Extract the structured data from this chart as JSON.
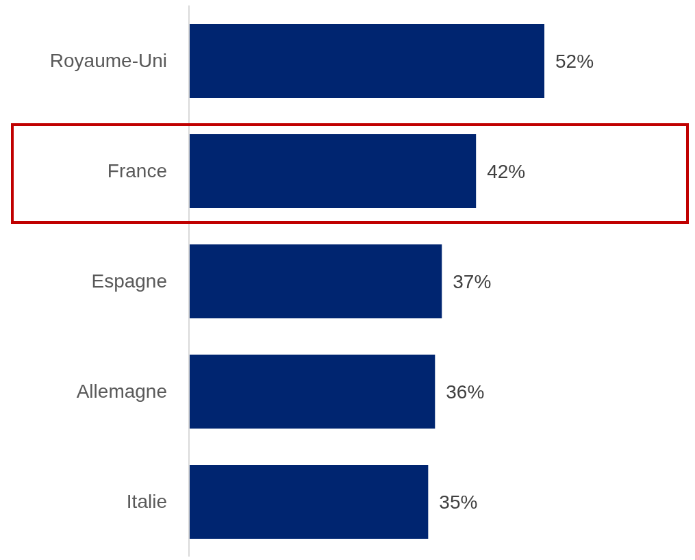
{
  "chart_data": {
    "type": "bar",
    "orientation": "horizontal",
    "categories": [
      "Royaume-Uni",
      "France",
      "Espagne",
      "Allemagne",
      "Italie"
    ],
    "values": [
      52,
      42,
      37,
      36,
      35
    ],
    "color": "#002570",
    "value_labels": [
      "52%",
      "42%",
      "37%",
      "36%",
      "35%"
    ],
    "grid": false,
    "legend": false
  }
}
